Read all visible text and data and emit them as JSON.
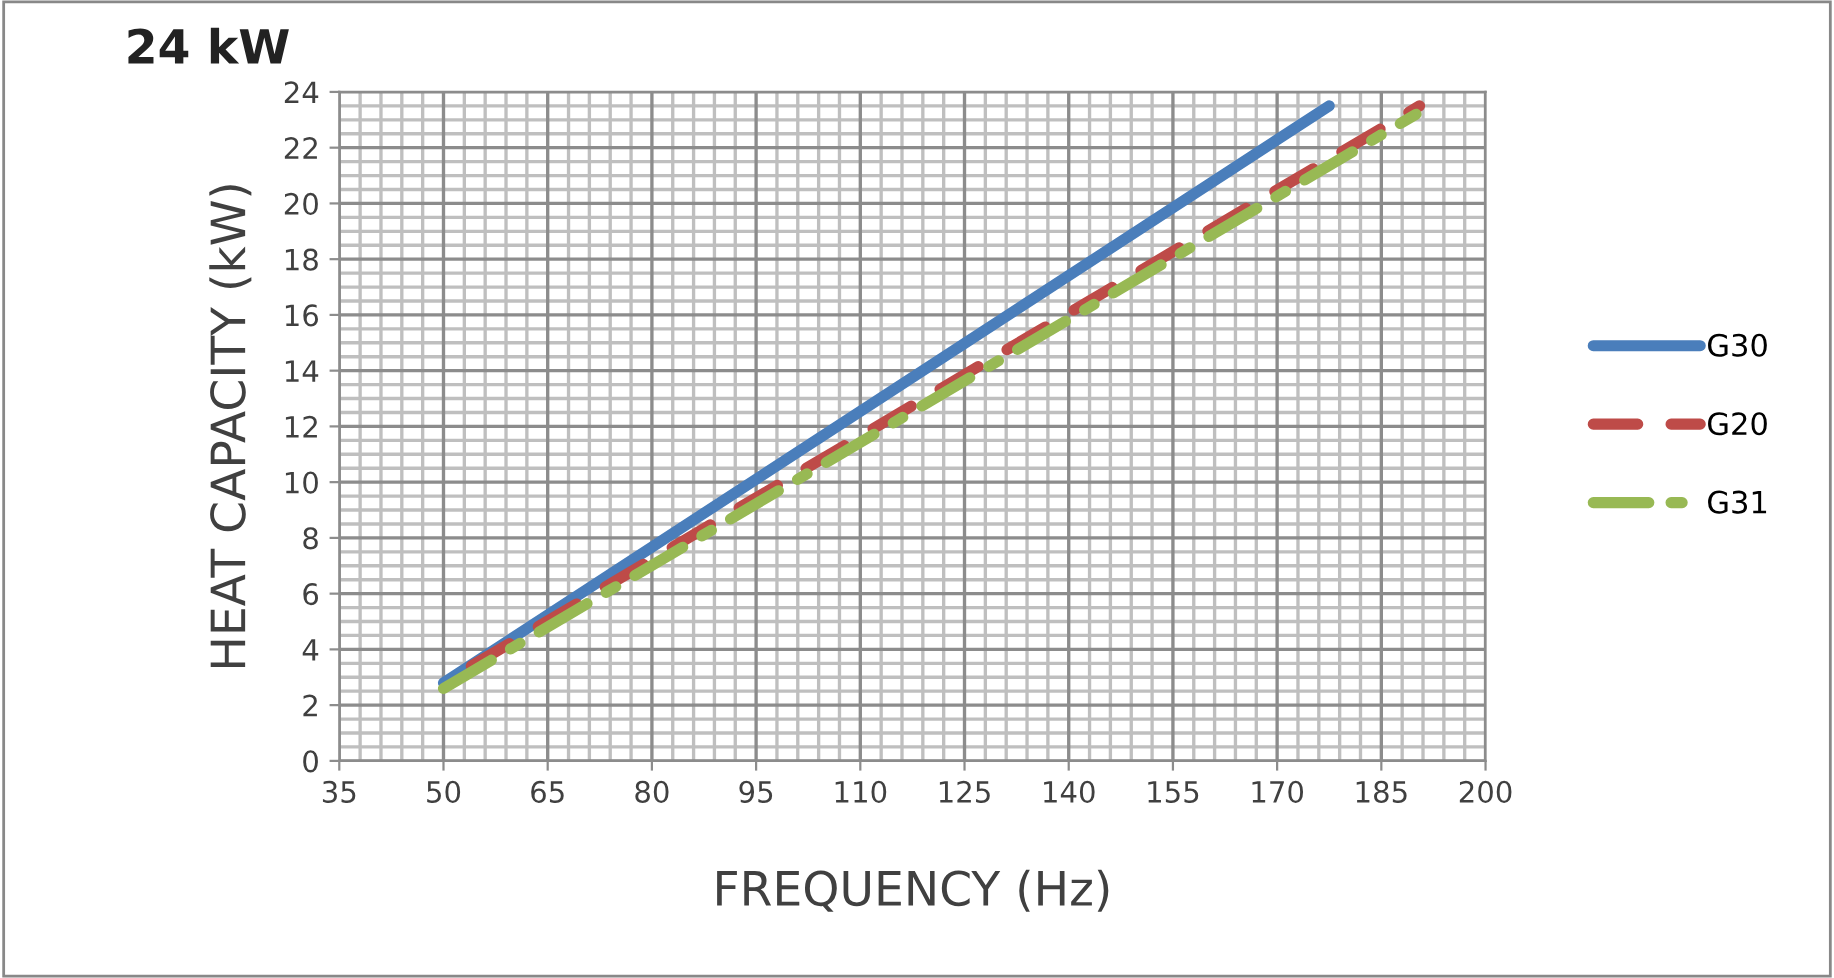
{
  "chart_data": {
    "type": "line",
    "title": "24 kW",
    "xlabel": "FREQUENCY (Hz)",
    "ylabel": "HEAT CAPACITY (kW)",
    "xlim": [
      35,
      200
    ],
    "xticks": [
      35,
      50,
      65,
      80,
      95,
      110,
      125,
      140,
      155,
      170,
      185,
      200
    ],
    "ylim": [
      0,
      24
    ],
    "yticks": [
      0,
      2,
      4,
      6,
      8,
      10,
      12,
      14,
      16,
      18,
      20,
      22,
      24
    ],
    "grid": true,
    "legend": "right",
    "marker": "none",
    "series": [
      {
        "name": "G30",
        "color": "#4a7ebb",
        "line_style": "solid",
        "x": [
          50,
          177.5
        ],
        "values": [
          2.8,
          23.5
        ]
      },
      {
        "name": "G20",
        "color": "#be4b48",
        "line_style": "dashed",
        "x": [
          54,
          190.5
        ],
        "values": [
          3.4,
          23.5
        ]
      },
      {
        "name": "G31",
        "color": "#98b954",
        "line_style": "dashdot",
        "x": [
          50,
          190
        ],
        "values": [
          2.6,
          23.2
        ]
      }
    ]
  }
}
